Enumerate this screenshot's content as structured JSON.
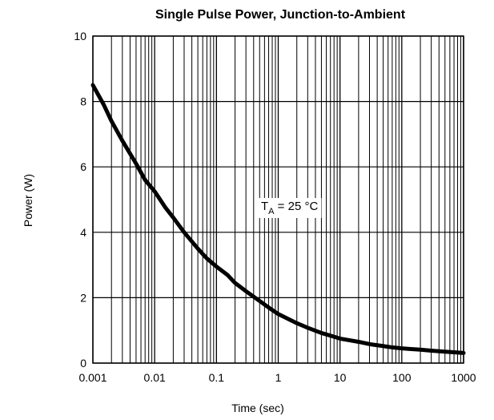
{
  "chart_data": {
    "type": "line",
    "title": "Single Pulse Power, Junction-to-Ambient",
    "xlabel": "Time (sec)",
    "ylabel": "Power  (W)",
    "xscale": "log",
    "xlim": [
      0.001,
      1000
    ],
    "ylim": [
      0,
      10
    ],
    "grid": true,
    "x_ticks": [
      {
        "value": 0.001,
        "label": "0.001"
      },
      {
        "value": 0.01,
        "label": "0.01"
      },
      {
        "value": 0.1,
        "label": "0.1"
      },
      {
        "value": 1,
        "label": "1"
      },
      {
        "value": 10,
        "label": "10"
      },
      {
        "value": 100,
        "label": "100"
      },
      {
        "value": 1000,
        "label": "1000"
      }
    ],
    "y_ticks": [
      {
        "value": 0,
        "label": "0"
      },
      {
        "value": 2,
        "label": "2"
      },
      {
        "value": 4,
        "label": "4"
      },
      {
        "value": 6,
        "label": "6"
      },
      {
        "value": 8,
        "label": "8"
      },
      {
        "value": 10,
        "label": "10"
      }
    ],
    "annotation": {
      "main": "T",
      "sub": "A",
      "rest": " = 25 °C",
      "x": 2,
      "y": 4.8
    },
    "series": [
      {
        "x": [
          0.001,
          0.0015,
          0.002,
          0.003,
          0.005,
          0.007,
          0.01,
          0.015,
          0.02,
          0.03,
          0.05,
          0.07,
          0.1,
          0.15,
          0.2,
          0.3,
          0.5,
          0.7,
          1,
          2,
          3,
          5,
          7,
          10,
          20,
          30,
          50,
          70,
          100,
          200,
          300,
          500,
          700,
          1000
        ],
        "y": [
          8.5,
          7.9,
          7.4,
          6.8,
          6.1,
          5.6,
          5.25,
          4.75,
          4.45,
          4.0,
          3.5,
          3.2,
          2.95,
          2.7,
          2.45,
          2.2,
          1.9,
          1.7,
          1.5,
          1.22,
          1.08,
          0.92,
          0.84,
          0.75,
          0.65,
          0.58,
          0.52,
          0.48,
          0.45,
          0.41,
          0.38,
          0.35,
          0.33,
          0.31
        ],
        "color": "#000000"
      }
    ]
  }
}
